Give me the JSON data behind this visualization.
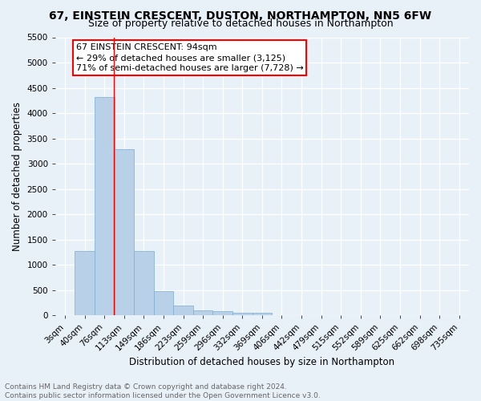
{
  "title": "67, EINSTEIN CRESCENT, DUSTON, NORTHAMPTON, NN5 6FW",
  "subtitle": "Size of property relative to detached houses in Northampton",
  "xlabel": "Distribution of detached houses by size in Northampton",
  "ylabel": "Number of detached properties",
  "bar_color": "#b8d0e8",
  "bar_edge_color": "#7aaed4",
  "categories": [
    "3sqm",
    "40sqm",
    "76sqm",
    "113sqm",
    "149sqm",
    "186sqm",
    "223sqm",
    "259sqm",
    "296sqm",
    "332sqm",
    "369sqm",
    "406sqm",
    "442sqm",
    "479sqm",
    "515sqm",
    "552sqm",
    "589sqm",
    "625sqm",
    "662sqm",
    "698sqm",
    "735sqm"
  ],
  "bar_heights": [
    0,
    1270,
    4320,
    3280,
    1275,
    475,
    195,
    100,
    80,
    55,
    45,
    0,
    0,
    0,
    0,
    0,
    0,
    0,
    0,
    0,
    0
  ],
  "bar_width": 1.0,
  "ylim": [
    0,
    5500
  ],
  "yticks": [
    0,
    500,
    1000,
    1500,
    2000,
    2500,
    3000,
    3500,
    4000,
    4500,
    5000,
    5500
  ],
  "red_line_x": 2.49,
  "annotation_text_line1": "67 EINSTEIN CRESCENT: 94sqm",
  "annotation_text_line2": "← 29% of detached houses are smaller (3,125)",
  "annotation_text_line3": "71% of semi-detached houses are larger (7,728) →",
  "footer_line1": "Contains HM Land Registry data © Crown copyright and database right 2024.",
  "footer_line2": "Contains public sector information licensed under the Open Government Licence v3.0.",
  "background_color": "#e8f0f8",
  "grid_color": "#ffffff",
  "title_fontsize": 10,
  "subtitle_fontsize": 9,
  "axis_label_fontsize": 8.5,
  "tick_fontsize": 7.5,
  "annotation_fontsize": 8,
  "footer_fontsize": 6.5
}
